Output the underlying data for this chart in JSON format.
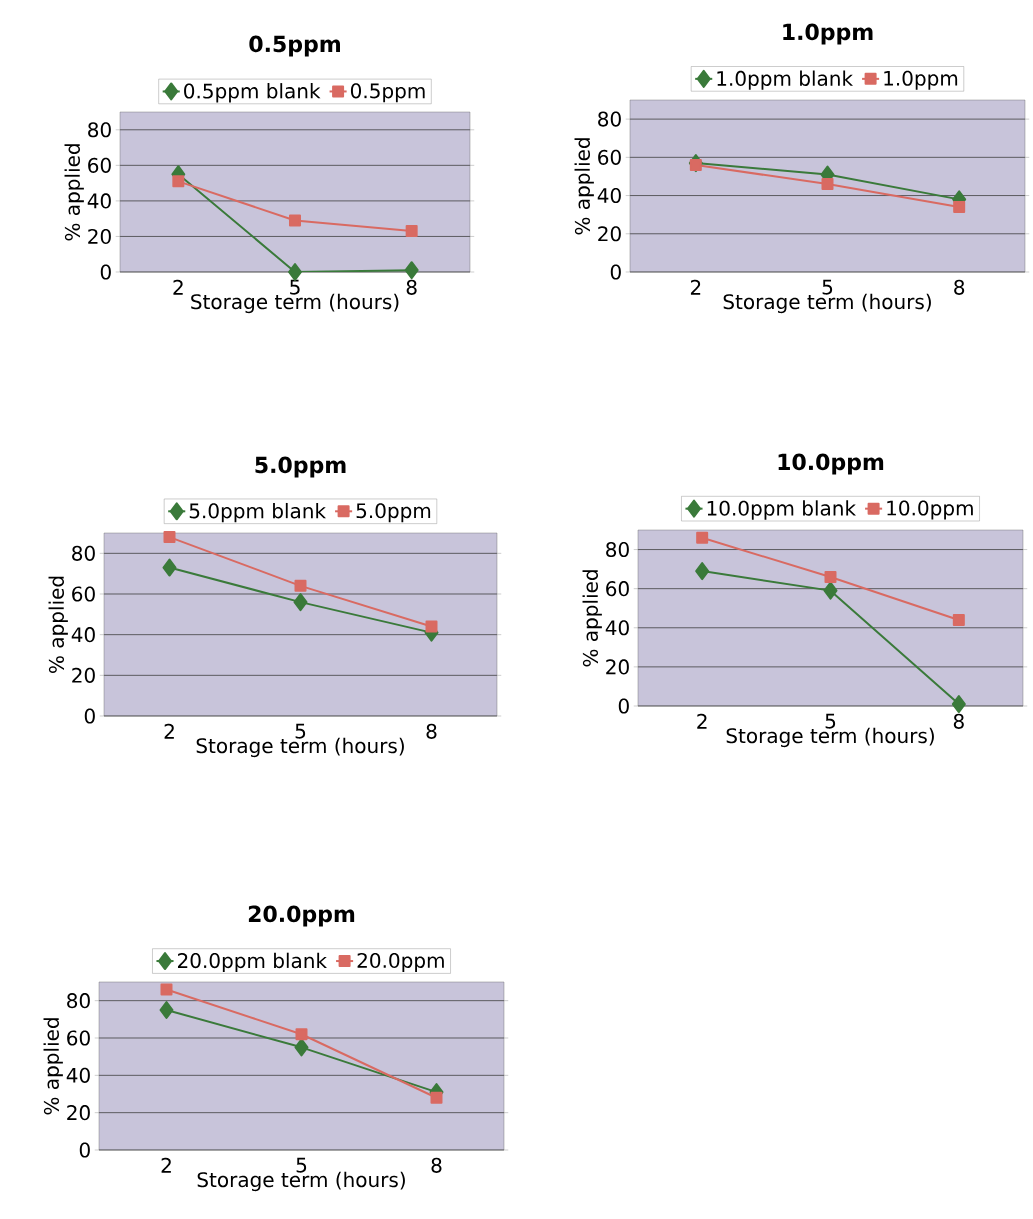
{
  "chart_data": [
    {
      "type": "line",
      "title": "0.5ppm",
      "xlabel": "Storage term (hours)",
      "ylabel": "% applied",
      "categories": [
        "2",
        "5",
        "8"
      ],
      "ylim": [
        0,
        90
      ],
      "yticks": [
        0,
        20,
        40,
        60,
        80
      ],
      "grid": "y",
      "legend": "top",
      "series": [
        {
          "name": "0.5ppm blank",
          "color": "#3a7a3a",
          "marker": "diamond",
          "values": [
            55,
            0,
            1
          ]
        },
        {
          "name": "0.5ppm",
          "color": "#d96a62",
          "marker": "square",
          "values": [
            51,
            29,
            23
          ]
        }
      ]
    },
    {
      "type": "line",
      "title": "1.0ppm",
      "xlabel": "Storage term (hours)",
      "ylabel": "% applied",
      "categories": [
        "2",
        "5",
        "8"
      ],
      "ylim": [
        0,
        90
      ],
      "yticks": [
        0,
        20,
        40,
        60,
        80
      ],
      "grid": "y",
      "legend": "top",
      "series": [
        {
          "name": "1.0ppm blank",
          "color": "#3a7a3a",
          "marker": "diamond",
          "values": [
            57,
            51,
            38
          ]
        },
        {
          "name": "1.0ppm",
          "color": "#d96a62",
          "marker": "square",
          "values": [
            56,
            46,
            34
          ]
        }
      ]
    },
    {
      "type": "line",
      "title": "5.0ppm",
      "xlabel": "Storage term (hours)",
      "ylabel": "% applied",
      "categories": [
        "2",
        "5",
        "8"
      ],
      "ylim": [
        0,
        90
      ],
      "yticks": [
        0,
        20,
        40,
        60,
        80
      ],
      "grid": "y",
      "legend": "top",
      "series": [
        {
          "name": "5.0ppm blank",
          "color": "#3a7a3a",
          "marker": "diamond",
          "values": [
            73,
            56,
            41
          ]
        },
        {
          "name": "5.0ppm",
          "color": "#d96a62",
          "marker": "square",
          "values": [
            88,
            64,
            44
          ]
        }
      ]
    },
    {
      "type": "line",
      "title": "10.0ppm",
      "xlabel": "Storage term (hours)",
      "ylabel": "% applied",
      "categories": [
        "2",
        "5",
        "8"
      ],
      "ylim": [
        0,
        90
      ],
      "yticks": [
        0,
        20,
        40,
        60,
        80
      ],
      "grid": "y",
      "legend": "top",
      "series": [
        {
          "name": "10.0ppm blank",
          "color": "#3a7a3a",
          "marker": "diamond",
          "values": [
            69,
            59,
            1
          ]
        },
        {
          "name": "10.0ppm",
          "color": "#d96a62",
          "marker": "square",
          "values": [
            86,
            66,
            44
          ]
        }
      ]
    },
    {
      "type": "line",
      "title": "20.0ppm",
      "xlabel": "Storage term (hours)",
      "ylabel": "% applied",
      "categories": [
        "2",
        "5",
        "8"
      ],
      "ylim": [
        0,
        90
      ],
      "yticks": [
        0,
        20,
        40,
        60,
        80
      ],
      "grid": "y",
      "legend": "top",
      "series": [
        {
          "name": "20.0ppm blank",
          "color": "#3a7a3a",
          "marker": "diamond",
          "values": [
            75,
            55,
            31
          ]
        },
        {
          "name": "20.0ppm",
          "color": "#d96a62",
          "marker": "square",
          "values": [
            86,
            62,
            28
          ]
        }
      ]
    }
  ]
}
